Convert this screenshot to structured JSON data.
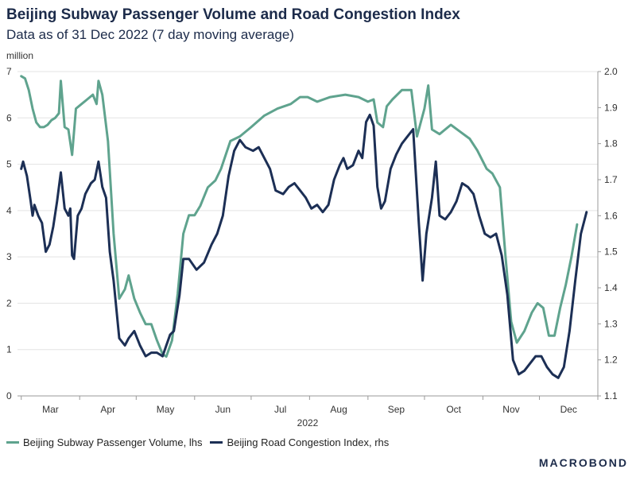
{
  "header": {
    "title": "Beijing Subway Passenger Volume and Road Congestion Index",
    "subtitle": "Data as of 31 Dec 2022 (7 day moving average)",
    "unit_label": "million"
  },
  "brand": "MACROBOND",
  "colors": {
    "subway": "#5fa38e",
    "congestion": "#1c2f55",
    "grid": "#e3e3e3",
    "axis": "#999999"
  },
  "chart_data": {
    "type": "line",
    "x_axis_label": "2022",
    "x_ticks": [
      "Mar",
      "Apr",
      "May",
      "Jun",
      "Jul",
      "Aug",
      "Sep",
      "Oct",
      "Nov",
      "Dec"
    ],
    "x_range": [
      "2022-02-27",
      "2023-01-01"
    ],
    "y_left": {
      "label": "million",
      "range": [
        0,
        7
      ],
      "ticks": [
        0,
        1,
        2,
        3,
        4,
        5,
        6,
        7
      ]
    },
    "y_right": {
      "range": [
        1.1,
        2.0
      ],
      "ticks": [
        "1.1",
        "1.2",
        "1.3",
        "1.4",
        "1.5",
        "1.6",
        "1.7",
        "1.8",
        "1.9",
        "2.0"
      ]
    },
    "grid": true,
    "legend_position": "bottom-left",
    "series": [
      {
        "name": "Beijing Subway Passenger Volume, lhs",
        "axis": "left",
        "points": [
          [
            "2022-03-01",
            6.9
          ],
          [
            "2022-03-03",
            6.85
          ],
          [
            "2022-03-05",
            6.6
          ],
          [
            "2022-03-07",
            6.2
          ],
          [
            "2022-03-09",
            5.9
          ],
          [
            "2022-03-11",
            5.8
          ],
          [
            "2022-03-13",
            5.8
          ],
          [
            "2022-03-15",
            5.85
          ],
          [
            "2022-03-17",
            5.95
          ],
          [
            "2022-03-19",
            6.0
          ],
          [
            "2022-03-21",
            6.1
          ],
          [
            "2022-03-22",
            6.8
          ],
          [
            "2022-03-24",
            5.8
          ],
          [
            "2022-03-26",
            5.75
          ],
          [
            "2022-03-28",
            5.2
          ],
          [
            "2022-03-30",
            6.2
          ],
          [
            "2022-04-02",
            6.3
          ],
          [
            "2022-04-05",
            6.4
          ],
          [
            "2022-04-08",
            6.5
          ],
          [
            "2022-04-10",
            6.3
          ],
          [
            "2022-04-11",
            6.8
          ],
          [
            "2022-04-13",
            6.5
          ],
          [
            "2022-04-16",
            5.5
          ],
          [
            "2022-04-19",
            3.5
          ],
          [
            "2022-04-22",
            2.1
          ],
          [
            "2022-04-25",
            2.3
          ],
          [
            "2022-04-27",
            2.6
          ],
          [
            "2022-04-30",
            2.1
          ],
          [
            "2022-05-03",
            1.8
          ],
          [
            "2022-05-06",
            1.55
          ],
          [
            "2022-05-09",
            1.55
          ],
          [
            "2022-05-12",
            1.2
          ],
          [
            "2022-05-15",
            0.9
          ],
          [
            "2022-05-17",
            0.85
          ],
          [
            "2022-05-20",
            1.2
          ],
          [
            "2022-05-23",
            2.2
          ],
          [
            "2022-05-26",
            3.5
          ],
          [
            "2022-05-29",
            3.9
          ],
          [
            "2022-06-01",
            3.9
          ],
          [
            "2022-06-04",
            4.1
          ],
          [
            "2022-06-08",
            4.5
          ],
          [
            "2022-06-12",
            4.65
          ],
          [
            "2022-06-15",
            4.9
          ],
          [
            "2022-06-20",
            5.5
          ],
          [
            "2022-06-25",
            5.6
          ],
          [
            "2022-07-01",
            5.8
          ],
          [
            "2022-07-08",
            6.05
          ],
          [
            "2022-07-15",
            6.2
          ],
          [
            "2022-07-22",
            6.3
          ],
          [
            "2022-07-27",
            6.45
          ],
          [
            "2022-07-31",
            6.45
          ],
          [
            "2022-08-05",
            6.35
          ],
          [
            "2022-08-12",
            6.45
          ],
          [
            "2022-08-20",
            6.5
          ],
          [
            "2022-08-27",
            6.45
          ],
          [
            "2022-09-01",
            6.35
          ],
          [
            "2022-09-04",
            6.4
          ],
          [
            "2022-09-06",
            5.9
          ],
          [
            "2022-09-09",
            5.8
          ],
          [
            "2022-09-11",
            6.25
          ],
          [
            "2022-09-14",
            6.4
          ],
          [
            "2022-09-19",
            6.6
          ],
          [
            "2022-09-24",
            6.6
          ],
          [
            "2022-09-27",
            5.6
          ],
          [
            "2022-10-01",
            6.2
          ],
          [
            "2022-10-03",
            6.7
          ],
          [
            "2022-10-05",
            5.75
          ],
          [
            "2022-10-09",
            5.65
          ],
          [
            "2022-10-15",
            5.85
          ],
          [
            "2022-10-20",
            5.7
          ],
          [
            "2022-10-25",
            5.55
          ],
          [
            "2022-10-29",
            5.3
          ],
          [
            "2022-11-03",
            4.9
          ],
          [
            "2022-11-06",
            4.8
          ],
          [
            "2022-11-10",
            4.5
          ],
          [
            "2022-11-13",
            3.0
          ],
          [
            "2022-11-16",
            1.6
          ],
          [
            "2022-11-19",
            1.15
          ],
          [
            "2022-11-23",
            1.4
          ],
          [
            "2022-11-27",
            1.8
          ],
          [
            "2022-11-30",
            2.0
          ],
          [
            "2022-12-03",
            1.9
          ],
          [
            "2022-12-06",
            1.3
          ],
          [
            "2022-12-09",
            1.3
          ],
          [
            "2022-12-12",
            1.9
          ],
          [
            "2022-12-15",
            2.4
          ],
          [
            "2022-12-18",
            3.0
          ],
          [
            "2022-12-21",
            3.7
          ]
        ]
      },
      {
        "name": "Beijing Road Congestion Index, rhs",
        "axis": "right",
        "points": [
          [
            "2022-03-01",
            1.73
          ],
          [
            "2022-03-02",
            1.75
          ],
          [
            "2022-03-04",
            1.71
          ],
          [
            "2022-03-06",
            1.64
          ],
          [
            "2022-03-07",
            1.6
          ],
          [
            "2022-03-08",
            1.63
          ],
          [
            "2022-03-10",
            1.6
          ],
          [
            "2022-03-12",
            1.58
          ],
          [
            "2022-03-14",
            1.5
          ],
          [
            "2022-03-16",
            1.52
          ],
          [
            "2022-03-18",
            1.57
          ],
          [
            "2022-03-20",
            1.64
          ],
          [
            "2022-03-22",
            1.72
          ],
          [
            "2022-03-24",
            1.62
          ],
          [
            "2022-03-26",
            1.6
          ],
          [
            "2022-03-27",
            1.62
          ],
          [
            "2022-03-28",
            1.49
          ],
          [
            "2022-03-29",
            1.48
          ],
          [
            "2022-03-31",
            1.6
          ],
          [
            "2022-04-02",
            1.62
          ],
          [
            "2022-04-04",
            1.66
          ],
          [
            "2022-04-07",
            1.69
          ],
          [
            "2022-04-09",
            1.7
          ],
          [
            "2022-04-11",
            1.75
          ],
          [
            "2022-04-13",
            1.68
          ],
          [
            "2022-04-15",
            1.65
          ],
          [
            "2022-04-17",
            1.5
          ],
          [
            "2022-04-19",
            1.42
          ],
          [
            "2022-04-22",
            1.26
          ],
          [
            "2022-04-25",
            1.24
          ],
          [
            "2022-04-27",
            1.26
          ],
          [
            "2022-04-30",
            1.28
          ],
          [
            "2022-05-03",
            1.24
          ],
          [
            "2022-05-06",
            1.21
          ],
          [
            "2022-05-09",
            1.22
          ],
          [
            "2022-05-12",
            1.22
          ],
          [
            "2022-05-15",
            1.21
          ],
          [
            "2022-05-17",
            1.24
          ],
          [
            "2022-05-19",
            1.27
          ],
          [
            "2022-05-21",
            1.28
          ],
          [
            "2022-05-24",
            1.38
          ],
          [
            "2022-05-26",
            1.48
          ],
          [
            "2022-05-29",
            1.48
          ],
          [
            "2022-06-02",
            1.45
          ],
          [
            "2022-06-06",
            1.47
          ],
          [
            "2022-06-10",
            1.52
          ],
          [
            "2022-06-13",
            1.55
          ],
          [
            "2022-06-16",
            1.6
          ],
          [
            "2022-06-19",
            1.71
          ],
          [
            "2022-06-22",
            1.78
          ],
          [
            "2022-06-25",
            1.81
          ],
          [
            "2022-06-28",
            1.79
          ],
          [
            "2022-07-02",
            1.78
          ],
          [
            "2022-07-05",
            1.79
          ],
          [
            "2022-07-08",
            1.76
          ],
          [
            "2022-07-11",
            1.73
          ],
          [
            "2022-07-14",
            1.67
          ],
          [
            "2022-07-18",
            1.66
          ],
          [
            "2022-07-21",
            1.68
          ],
          [
            "2022-07-24",
            1.69
          ],
          [
            "2022-07-27",
            1.67
          ],
          [
            "2022-07-30",
            1.65
          ],
          [
            "2022-08-02",
            1.62
          ],
          [
            "2022-08-05",
            1.63
          ],
          [
            "2022-08-08",
            1.61
          ],
          [
            "2022-08-11",
            1.63
          ],
          [
            "2022-08-14",
            1.7
          ],
          [
            "2022-08-17",
            1.74
          ],
          [
            "2022-08-19",
            1.76
          ],
          [
            "2022-08-21",
            1.73
          ],
          [
            "2022-08-24",
            1.74
          ],
          [
            "2022-08-27",
            1.78
          ],
          [
            "2022-08-29",
            1.76
          ],
          [
            "2022-08-31",
            1.86
          ],
          [
            "2022-09-02",
            1.88
          ],
          [
            "2022-09-04",
            1.85
          ],
          [
            "2022-09-06",
            1.68
          ],
          [
            "2022-09-08",
            1.62
          ],
          [
            "2022-09-10",
            1.64
          ],
          [
            "2022-09-13",
            1.73
          ],
          [
            "2022-09-16",
            1.77
          ],
          [
            "2022-09-19",
            1.8
          ],
          [
            "2022-09-22",
            1.82
          ],
          [
            "2022-09-25",
            1.84
          ],
          [
            "2022-09-28",
            1.58
          ],
          [
            "2022-09-30",
            1.42
          ],
          [
            "2022-10-02",
            1.55
          ],
          [
            "2022-10-05",
            1.65
          ],
          [
            "2022-10-07",
            1.75
          ],
          [
            "2022-10-09",
            1.6
          ],
          [
            "2022-10-12",
            1.59
          ],
          [
            "2022-10-15",
            1.61
          ],
          [
            "2022-10-18",
            1.64
          ],
          [
            "2022-10-21",
            1.69
          ],
          [
            "2022-10-24",
            1.68
          ],
          [
            "2022-10-27",
            1.66
          ],
          [
            "2022-10-30",
            1.6
          ],
          [
            "2022-11-02",
            1.55
          ],
          [
            "2022-11-05",
            1.54
          ],
          [
            "2022-11-08",
            1.55
          ],
          [
            "2022-11-11",
            1.49
          ],
          [
            "2022-11-14",
            1.38
          ],
          [
            "2022-11-17",
            1.2
          ],
          [
            "2022-11-20",
            1.16
          ],
          [
            "2022-11-23",
            1.17
          ],
          [
            "2022-11-26",
            1.19
          ],
          [
            "2022-11-29",
            1.21
          ],
          [
            "2022-12-02",
            1.21
          ],
          [
            "2022-12-05",
            1.18
          ],
          [
            "2022-12-08",
            1.16
          ],
          [
            "2022-12-11",
            1.15
          ],
          [
            "2022-12-14",
            1.18
          ],
          [
            "2022-12-17",
            1.28
          ],
          [
            "2022-12-20",
            1.42
          ],
          [
            "2022-12-23",
            1.55
          ],
          [
            "2022-12-26",
            1.61
          ]
        ]
      }
    ]
  }
}
